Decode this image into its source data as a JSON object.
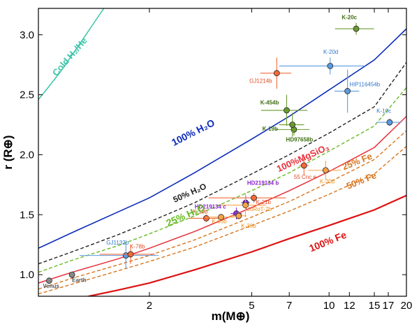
{
  "chart_data": {
    "type": "scatter",
    "xlabel": "m(M⊕)",
    "ylabel": "r (R⊕)",
    "xscale": "log",
    "xlim": [
      0.74,
      20
    ],
    "ylim": [
      0.82,
      3.22
    ],
    "grid": false,
    "x_ticks": [
      {
        "value": 2,
        "label": "2"
      },
      {
        "value": 5,
        "label": "5"
      },
      {
        "value": 7,
        "label": "7"
      },
      {
        "value": 10,
        "label": "10"
      },
      {
        "value": 12,
        "label": "12"
      },
      {
        "value": 15,
        "label": "15"
      },
      {
        "value": 17,
        "label": "17"
      },
      {
        "value": 20,
        "label": "20"
      }
    ],
    "y_ticks": [
      {
        "value": 1.0,
        "label": "1.0"
      },
      {
        "value": 1.5,
        "label": "1.5"
      },
      {
        "value": 2.0,
        "label": "2.0"
      },
      {
        "value": 2.5,
        "label": "2.5"
      },
      {
        "value": 3.0,
        "label": "3.0"
      }
    ],
    "curves": [
      {
        "label": "Cold H₂/He",
        "color": "#3cc4a8",
        "dash": "solid",
        "width": 1.5,
        "label_font": 13,
        "label_rotation": -49,
        "label_x": 1.0,
        "label_y": 2.8,
        "points": [
          [
            0.74,
            2.46
          ],
          [
            0.8,
            2.55
          ],
          [
            0.9,
            2.69
          ],
          [
            1.0,
            2.83
          ],
          [
            1.1,
            2.96
          ],
          [
            1.2,
            3.08
          ],
          [
            1.33,
            3.22
          ]
        ]
      },
      {
        "label": "100% H₂O",
        "color": "#0b2bb8",
        "dash": "solid",
        "width": 1.6,
        "label_font": 14,
        "label_rotation": -27,
        "label_x": 3.0,
        "label_y": 2.16,
        "points": [
          [
            0.74,
            1.22
          ],
          [
            1,
            1.35
          ],
          [
            1.5,
            1.52
          ],
          [
            2,
            1.64
          ],
          [
            3,
            1.85
          ],
          [
            5,
            2.13
          ],
          [
            7,
            2.32
          ],
          [
            10,
            2.54
          ],
          [
            15,
            2.79
          ],
          [
            20,
            3.05
          ]
        ]
      },
      {
        "label": "50% H₂O",
        "color": "#222222",
        "dash": "dashed",
        "width": 1.4,
        "label_font": 12,
        "label_rotation": -24,
        "label_x": 2.9,
        "label_y": 1.66,
        "points": [
          [
            0.74,
            1.09
          ],
          [
            1,
            1.19
          ],
          [
            1.5,
            1.33
          ],
          [
            2,
            1.44
          ],
          [
            3,
            1.6
          ],
          [
            5,
            1.84
          ],
          [
            7,
            2.0
          ],
          [
            10,
            2.18
          ],
          [
            15,
            2.4
          ],
          [
            20,
            2.77
          ]
        ]
      },
      {
        "label": "25% H₂O",
        "color": "#66bb22",
        "dash": "dashed",
        "width": 1.4,
        "label_font": 14,
        "label_rotation": -24,
        "label_x": 2.8,
        "label_y": 1.47,
        "points": [
          [
            0.74,
            1.02
          ],
          [
            1,
            1.12
          ],
          [
            1.5,
            1.24
          ],
          [
            2,
            1.34
          ],
          [
            3,
            1.49
          ],
          [
            5,
            1.7
          ],
          [
            7,
            1.85
          ],
          [
            10,
            2.03
          ],
          [
            15,
            2.24
          ],
          [
            20,
            2.56
          ]
        ]
      },
      {
        "label": "100%MgSiO₃",
        "color": "#e8303a",
        "dash": "solid",
        "width": 1.5,
        "label_font": 13,
        "label_rotation": -24,
        "label_x": 8.0,
        "label_y": 1.95,
        "points": [
          [
            0.74,
            0.93
          ],
          [
            1,
            1.02
          ],
          [
            1.5,
            1.13
          ],
          [
            2,
            1.22
          ],
          [
            3,
            1.36
          ],
          [
            5,
            1.56
          ],
          [
            7,
            1.7
          ],
          [
            10,
            1.86
          ],
          [
            15,
            2.06
          ],
          [
            20,
            2.32
          ]
        ]
      },
      {
        "label": "25% Fe",
        "color": "#d9751c",
        "dash": "dashed",
        "width": 1.4,
        "label_font": 13,
        "label_rotation": -22,
        "label_x": 13.0,
        "label_y": 1.92,
        "points": [
          [
            0.74,
            0.88
          ],
          [
            1,
            0.97
          ],
          [
            1.5,
            1.08
          ],
          [
            2,
            1.16
          ],
          [
            3,
            1.29
          ],
          [
            5,
            1.48
          ],
          [
            7,
            1.61
          ],
          [
            10,
            1.77
          ],
          [
            15,
            1.96
          ],
          [
            20,
            2.2
          ]
        ]
      },
      {
        "label": "50% Fe",
        "color": "#d9751c",
        "dash": "dashed",
        "width": 1.4,
        "label_font": 13,
        "label_rotation": -22,
        "label_x": 13.5,
        "label_y": 1.76,
        "points": [
          [
            0.74,
            0.84
          ],
          [
            1,
            0.92
          ],
          [
            1.5,
            1.03
          ],
          [
            2,
            1.11
          ],
          [
            3,
            1.23
          ],
          [
            5,
            1.41
          ],
          [
            7,
            1.53
          ],
          [
            10,
            1.67
          ],
          [
            15,
            1.84
          ],
          [
            20,
            2.07
          ]
        ]
      },
      {
        "label": "100% Fe",
        "color": "#dd1111",
        "dash": "solid",
        "width": 2.2,
        "label_font": 14,
        "label_rotation": -22,
        "label_x": 10.0,
        "label_y": 1.25,
        "points": [
          [
            0.74,
            0.75
          ],
          [
            1,
            0.79
          ],
          [
            1.5,
            0.87
          ],
          [
            2,
            0.93
          ],
          [
            3,
            1.04
          ],
          [
            5,
            1.19
          ],
          [
            7,
            1.3
          ],
          [
            10,
            1.41
          ],
          [
            15,
            1.54
          ],
          [
            20,
            1.66
          ]
        ]
      }
    ],
    "planets": [
      {
        "name": "Venus",
        "mass": 0.815,
        "radius": 0.95,
        "color": "#888888",
        "text_color": "#555555",
        "font": 10,
        "bold": true,
        "lx": 0.77,
        "ly": 0.89
      },
      {
        "name": "Earth",
        "mass": 1.0,
        "radius": 1.0,
        "color": "#888888",
        "text_color": "#555555",
        "font": 10,
        "bold": true,
        "lx": 1.0,
        "ly": 0.94
      },
      {
        "name": "GJ1132b",
        "mass": 1.62,
        "radius": 1.16,
        "mass_err": 0.55,
        "radius_err": 0.11,
        "color": "#5b9be0",
        "text_color": "#2e77c8",
        "font": 8,
        "lx": 1.36,
        "ly": 1.25
      },
      {
        "name": "K-78b",
        "mass": 1.69,
        "radius": 1.17,
        "mass_err": 0.41,
        "radius_err": 0.08,
        "color": "#f26a3c",
        "text_color": "#e04a20",
        "font": 8,
        "lx": 1.68,
        "ly": 1.22
      },
      {
        "name": "K-10b",
        "mass": 3.33,
        "radius": 1.47,
        "mass_err": 0.49,
        "radius_err": 0.03,
        "color": "#f26a3c",
        "text_color": "#e04a20",
        "font": 8,
        "lx": 2.95,
        "ly": 1.51
      },
      {
        "name": "K-93b",
        "mass": 3.8,
        "radius": 1.48,
        "mass_err": 0.5,
        "radius_err": 0.02,
        "color": "#f5a34a",
        "text_color": "#e8901e",
        "font": 8,
        "lx": 3.5,
        "ly": 1.43
      },
      {
        "name": "HD219134 c",
        "mass": 4.36,
        "radius": 1.51,
        "mass_err": 0.22,
        "radius_err": 0.05,
        "color": "#8a35d8",
        "text_color": "#8a20d0",
        "font": 11,
        "bold": true,
        "lx": 3.0,
        "ly": 1.55
      },
      {
        "name": "HD219134 b",
        "mass": 4.74,
        "radius": 1.6,
        "mass_err": 0.19,
        "radius_err": 0.06,
        "color": "#8a35d8",
        "text_color": "#8a20d0",
        "font": 11,
        "bold": true,
        "lx": 4.8,
        "ly": 1.75
      },
      {
        "name": "CoRoT-7b",
        "mass": 4.73,
        "radius": 1.58,
        "mass_err": 0.95,
        "radius_err": 0.1,
        "color": "#f5a34a",
        "text_color": "#e8901e",
        "font": 8,
        "lx": 4.75,
        "ly": 1.53
      },
      {
        "name": "K-36b",
        "mass": 4.45,
        "radius": 1.49,
        "mass_err": 0.33,
        "radius_err": 0.03,
        "color": "#f5a34a",
        "text_color": "#e8901e",
        "font": 8,
        "lx": 4.55,
        "ly": 1.39
      },
      {
        "name": "K-21b",
        "mass": 5.1,
        "radius": 1.64,
        "mass_err": 1.7,
        "radius_err": 0.04,
        "color": "#f26a3c",
        "text_color": "#e04a20",
        "font": 8,
        "lx": 5.2,
        "ly": 1.59
      },
      {
        "name": "55 Cnc e",
        "mass": 7.99,
        "radius": 1.91,
        "mass_err": 0.33,
        "radius_err": 0.08,
        "color": "#f26a3c",
        "text_color": "#e04a20",
        "font": 8,
        "lx": 7.3,
        "ly": 1.8
      },
      {
        "name": "K-20b",
        "mass": 9.7,
        "radius": 1.87,
        "mass_err": 1.4,
        "radius_err": 0.08,
        "color": "#f5a34a",
        "text_color": "#e8901e",
        "font": 8,
        "lx": 9.2,
        "ly": 1.76
      },
      {
        "name": "GJ1214b",
        "mass": 6.26,
        "radius": 2.68,
        "mass_err": 0.86,
        "radius_err": 0.13,
        "color": "#f26a3c",
        "text_color": "#e04a20",
        "font": 8,
        "lx": 4.9,
        "ly": 2.6
      },
      {
        "name": "K-20d",
        "mass": 10.1,
        "radius": 2.74,
        "mass_err": 3.7,
        "radius_err": 0.07,
        "color": "#5b9be0",
        "text_color": "#2e77c8",
        "font": 8,
        "lx": 9.5,
        "ly": 2.84
      },
      {
        "name": "HIP116454b",
        "mass": 11.8,
        "radius": 2.53,
        "mass_err": 1.3,
        "radius_err": 0.18,
        "color": "#5b9be0",
        "text_color": "#2e77c8",
        "font": 8,
        "lx": 12.0,
        "ly": 2.57
      },
      {
        "name": "K-10c",
        "mass": 17.2,
        "radius": 2.27,
        "mass_err": 1.9,
        "radius_err": 0.03,
        "color": "#5b9be0",
        "text_color": "#2e77c8",
        "font": 8,
        "lx": 15.3,
        "ly": 2.35
      },
      {
        "name": "K-20c",
        "mass": 12.75,
        "radius": 3.05,
        "mass_err": 2.2,
        "radius_err": 0.05,
        "color": "#6a9a2e",
        "text_color": "#3f6e12",
        "font": 8,
        "bold": true,
        "lx": 11.2,
        "ly": 3.13
      },
      {
        "name": "K-454b",
        "mass": 6.84,
        "radius": 2.37,
        "mass_err": 1.4,
        "radius_err": 0.13,
        "color": "#6a9a2e",
        "text_color": "#3f6e12",
        "font": 8,
        "bold": true,
        "lx": 5.4,
        "ly": 2.42
      },
      {
        "name": "K-19b",
        "mass": 7.3,
        "radius": 2.21,
        "mass_err": 1.1,
        "radius_err": 0.05,
        "color": "#6a9a2e",
        "text_color": "#3f6e12",
        "font": 8,
        "bold": true,
        "lx": 5.5,
        "ly": 2.2
      },
      {
        "name": "HD97658b",
        "mass": 7.2,
        "radius": 2.25,
        "mass_err": 0.8,
        "radius_err": 0.1,
        "color": "#6a9a2e",
        "text_color": "#3f6e12",
        "font": 8,
        "bold": true,
        "lx": 6.8,
        "ly": 2.11
      }
    ]
  }
}
